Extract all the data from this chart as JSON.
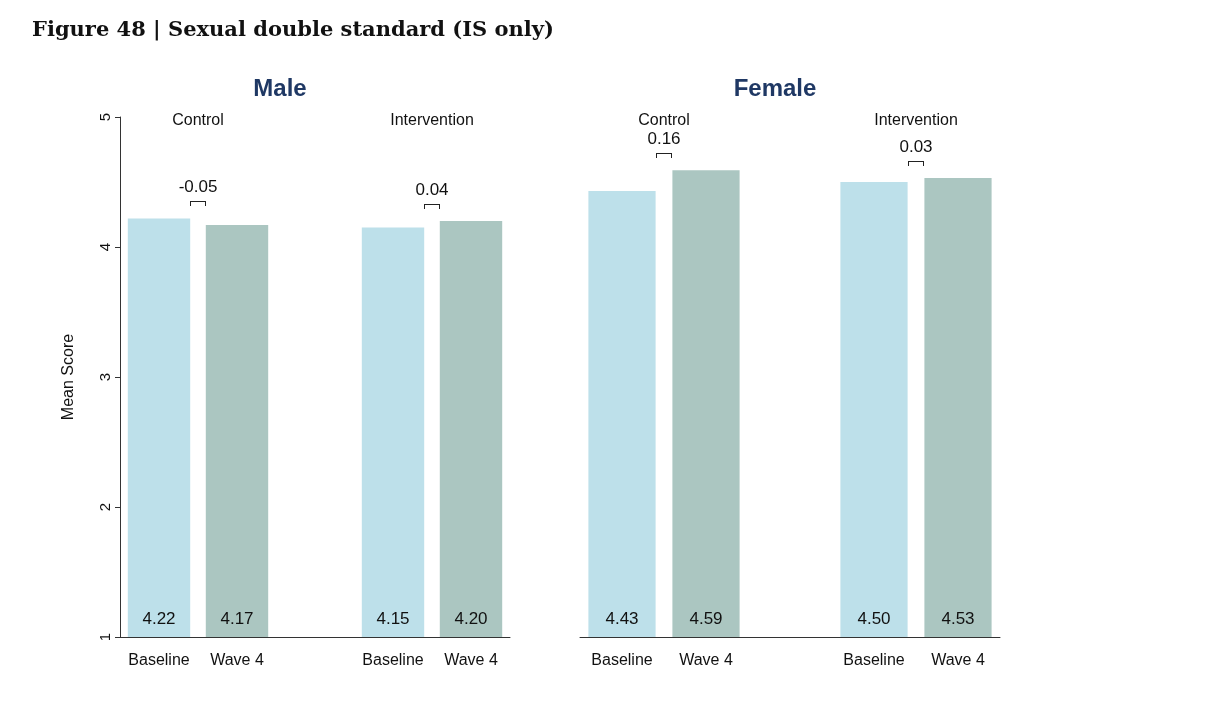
{
  "chart_data": [
    {
      "type": "bar",
      "title": "Figure 48 | Sexual double standard (IS only)",
      "subtitle": "Male",
      "ylabel": "Mean Score",
      "categories": [
        "Baseline",
        "Wave 4",
        "Baseline",
        "Wave 4"
      ],
      "values": [
        4.22,
        4.17,
        4.15,
        4.2
      ],
      "colors": [
        "#bde0ea",
        "#abc6c1",
        "#bde0ea",
        "#abc6c1"
      ],
      "ylim": [
        1,
        5
      ],
      "yticks": [
        1,
        2,
        3,
        4,
        5
      ],
      "value_labels": [
        "4.22",
        "4.17",
        "4.15",
        "4.20"
      ],
      "grid": false,
      "annotations": [
        "Control",
        "-0.05",
        "Intervention",
        "0.04"
      ]
    },
    {
      "type": "bar",
      "subtitle": "Female",
      "categories": [
        "Baseline",
        "Wave 4",
        "Baseline",
        "Wave 4"
      ],
      "values": [
        4.43,
        4.59,
        4.5,
        4.53
      ],
      "colors": [
        "#bde0ea",
        "#abc6c1",
        "#bde0ea",
        "#abc6c1"
      ],
      "ylim": [
        1,
        5
      ],
      "yticks": [
        1,
        2,
        3,
        4,
        5
      ],
      "value_labels": [
        "4.43",
        "4.59",
        "4.50",
        "4.53"
      ],
      "grid": false,
      "tick_labels": "x",
      "annotations": [
        "Control",
        "0.16",
        "Intervention",
        "0.03"
      ]
    }
  ]
}
